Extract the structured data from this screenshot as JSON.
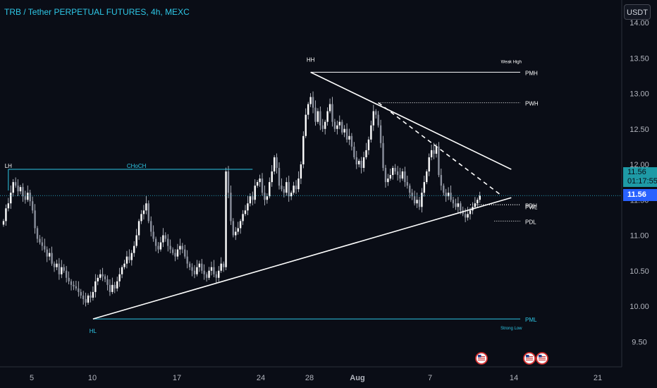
{
  "header": {
    "title": "TRB / Tether PERPETUAL FUTURES, 4h, MEXC",
    "currency_label": "USDT"
  },
  "price_tags": {
    "current_price": "11.56",
    "countdown": "01:17:55",
    "last_price": "11.56"
  },
  "colors": {
    "background": "#0a0d16",
    "up": "#ffffff",
    "down": "#ffffff",
    "accent": "#2ec7e6",
    "annotation": "#ffffff"
  },
  "events": {
    "icon": "us-flag-economic-event-icon",
    "dates_label": [
      "Aug 9",
      "Aug 13",
      "Aug 13"
    ]
  },
  "chart_data": {
    "type": "candlestick",
    "title": "TRB / Tether PERPETUAL FUTURES, 4h, MEXC",
    "x_ticks": [
      "5",
      "10",
      "17",
      "24",
      "28",
      "Aug",
      "7",
      "14",
      "21"
    ],
    "y_ticks": [
      "14.00",
      "13.50",
      "13.00",
      "12.50",
      "12.00",
      "11.50",
      "11.00",
      "10.50",
      "10.00",
      "9.50"
    ],
    "ylim": [
      9.25,
      14.0
    ],
    "grid": false,
    "series": [
      {
        "interval": "4h",
        "start": "2023-07-03",
        "close": [
          11.2,
          11.38,
          11.45,
          11.6,
          11.75,
          11.7,
          11.62,
          11.68,
          11.55,
          11.5,
          11.6,
          11.48,
          11.35,
          11.1,
          10.95,
          10.9,
          10.85,
          10.8,
          10.7,
          10.75,
          10.6,
          10.55,
          10.6,
          10.45,
          10.55,
          10.5,
          10.4,
          10.35,
          10.3,
          10.28,
          10.25,
          10.2,
          10.15,
          10.1,
          10.05,
          10.15,
          10.12,
          10.2,
          10.35,
          10.4,
          10.45,
          10.42,
          10.38,
          10.3,
          10.2,
          10.3,
          10.25,
          10.35,
          10.45,
          10.55,
          10.6,
          10.7,
          10.65,
          10.75,
          10.85,
          11.0,
          11.2,
          11.3,
          11.35,
          11.45,
          11.2,
          11.05,
          10.95,
          10.85,
          10.8,
          10.9,
          11.0,
          10.95,
          10.85,
          10.8,
          10.75,
          10.7,
          10.8,
          10.85,
          10.8,
          10.7,
          10.6,
          10.55,
          10.5,
          10.45,
          10.55,
          10.6,
          10.5,
          10.45,
          10.4,
          10.5,
          10.55,
          10.45,
          10.4,
          10.5,
          10.6,
          10.55,
          11.9,
          11.6,
          11.2,
          11.0,
          11.05,
          11.1,
          11.2,
          11.3,
          11.35,
          11.45,
          11.55,
          11.5,
          11.7,
          11.75,
          11.8,
          11.6,
          11.5,
          11.55,
          11.75,
          11.9,
          12.1,
          11.95,
          11.7,
          11.65,
          11.6,
          11.75,
          11.55,
          11.6,
          11.7,
          11.65,
          11.8,
          12.0,
          12.4,
          12.7,
          12.85,
          12.95,
          12.8,
          12.6,
          12.75,
          12.55,
          12.5,
          12.6,
          12.75,
          12.85,
          12.6,
          12.5,
          12.55,
          12.6,
          12.45,
          12.5,
          12.35,
          12.4,
          12.25,
          12.1,
          12.0,
          12.05,
          11.95,
          12.1,
          12.2,
          12.35,
          12.55,
          12.75,
          12.7,
          12.55,
          12.3,
          11.95,
          11.75,
          11.8,
          11.85,
          11.95,
          11.9,
          11.85,
          11.8,
          11.9,
          11.75,
          11.7,
          11.6,
          11.55,
          11.45,
          11.5,
          11.4,
          11.6,
          11.75,
          11.9,
          12.1,
          12.2,
          12.15,
          12.25,
          11.85,
          11.7,
          11.6,
          11.55,
          11.6,
          11.5,
          11.45,
          11.4,
          11.45,
          11.35,
          11.3,
          11.25,
          11.3,
          11.35,
          11.4,
          11.45,
          11.5,
          11.56
        ]
      }
    ],
    "annotations": [
      {
        "text": "LH",
        "x_index": 2,
        "price": 11.95
      },
      {
        "text": "CHoCH",
        "x_index": 55,
        "price": 11.95
      },
      {
        "text": "HH",
        "x_index": 127,
        "price": 13.45
      },
      {
        "text": "HL",
        "x_index": 37,
        "price": 9.62
      },
      {
        "text": "Weak High",
        "x_index": 210,
        "price": 13.43
      },
      {
        "text": "Strong Low",
        "x_index": 210,
        "price": 9.67
      }
    ],
    "levels": [
      {
        "name": "PMH",
        "price": 13.3,
        "style": "solid"
      },
      {
        "name": "PWH",
        "price": 12.87,
        "style": "dotted"
      },
      {
        "name": "PDH",
        "price": 11.43,
        "style": "dotted"
      },
      {
        "name": "PWL",
        "price": 11.43,
        "style": "dotted"
      },
      {
        "name": "PDL",
        "price": 11.2,
        "style": "dotted"
      },
      {
        "name": "PML",
        "price": 9.82,
        "style": "solid"
      },
      {
        "name": "CHoCH",
        "price": 11.93,
        "style": "solid"
      }
    ],
    "trendlines": [
      {
        "from": {
          "x_index": 37,
          "price": 9.82
        },
        "to": {
          "x_index": 210,
          "price": 11.53
        },
        "style": "solid"
      },
      {
        "from": {
          "x_index": 127,
          "price": 13.3
        },
        "to": {
          "x_index": 210,
          "price": 11.93
        },
        "style": "solid"
      },
      {
        "from": {
          "x_index": 155,
          "price": 12.87
        },
        "to": {
          "x_index": 206,
          "price": 11.56
        },
        "style": "dashed"
      }
    ]
  }
}
